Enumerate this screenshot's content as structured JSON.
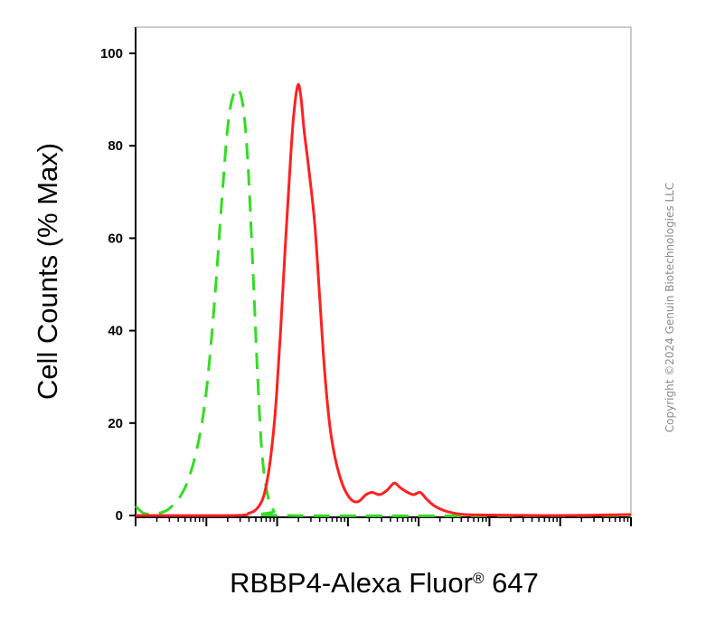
{
  "chart_data": {
    "type": "line",
    "title": "",
    "xlabel": "RBBP4-Alexa Fluor",
    "xlabel_registered": "®",
    "xlabel_suffix": " 647",
    "ylabel": "Cell Counts (% Max)",
    "x_scale": "log",
    "xlim": [
      10,
      100000000
    ],
    "ylim": [
      0,
      100
    ],
    "yticks": [
      0,
      20,
      40,
      60,
      80,
      100
    ],
    "ytick_labels": [
      "0",
      "20",
      "40",
      "60",
      "80",
      "100"
    ],
    "grid": false,
    "legend": "none",
    "series": [
      {
        "color": "#33dd22",
        "style": "dashed",
        "points": [
          [
            10,
            2
          ],
          [
            13,
            0.5
          ],
          [
            18,
            0.3
          ],
          [
            30,
            1.5
          ],
          [
            50,
            6
          ],
          [
            75,
            15
          ],
          [
            100,
            27
          ],
          [
            130,
            46
          ],
          [
            165,
            68
          ],
          [
            200,
            84
          ],
          [
            240,
            91
          ],
          [
            290,
            92
          ],
          [
            340,
            87
          ],
          [
            390,
            75
          ],
          [
            450,
            55
          ],
          [
            520,
            33
          ],
          [
            600,
            15
          ],
          [
            720,
            5
          ],
          [
            900,
            1
          ],
          [
            1300,
            0
          ],
          [
            100000000,
            0
          ]
        ]
      },
      {
        "color": "#ff2020",
        "style": "solid",
        "points": [
          [
            10,
            0
          ],
          [
            250,
            0
          ],
          [
            400,
            0.5
          ],
          [
            520,
            1.5
          ],
          [
            640,
            4
          ],
          [
            750,
            9
          ],
          [
            860,
            16
          ],
          [
            980,
            26
          ],
          [
            1120,
            40
          ],
          [
            1300,
            58
          ],
          [
            1500,
            74
          ],
          [
            1700,
            86
          ],
          [
            1950,
            93
          ],
          [
            2150,
            91
          ],
          [
            2420,
            83
          ],
          [
            2800,
            75
          ],
          [
            3400,
            63
          ],
          [
            4000,
            47
          ],
          [
            4700,
            31
          ],
          [
            5600,
            19
          ],
          [
            6700,
            12
          ],
          [
            8500,
            6.5
          ],
          [
            11000,
            3.5
          ],
          [
            14000,
            3
          ],
          [
            18000,
            4.5
          ],
          [
            22000,
            5
          ],
          [
            28000,
            4.5
          ],
          [
            36000,
            5.5
          ],
          [
            45000,
            7
          ],
          [
            55000,
            6
          ],
          [
            70000,
            5
          ],
          [
            85000,
            4.5
          ],
          [
            105000,
            5
          ],
          [
            130000,
            3.5
          ],
          [
            170000,
            2
          ],
          [
            260000,
            0.8
          ],
          [
            450000,
            0.2
          ],
          [
            1000000,
            0.1
          ],
          [
            10000000,
            0
          ],
          [
            100000000,
            0.2
          ]
        ]
      }
    ]
  },
  "copyright": "Copyright ©2024 Genuin Biotechnologies LLC"
}
